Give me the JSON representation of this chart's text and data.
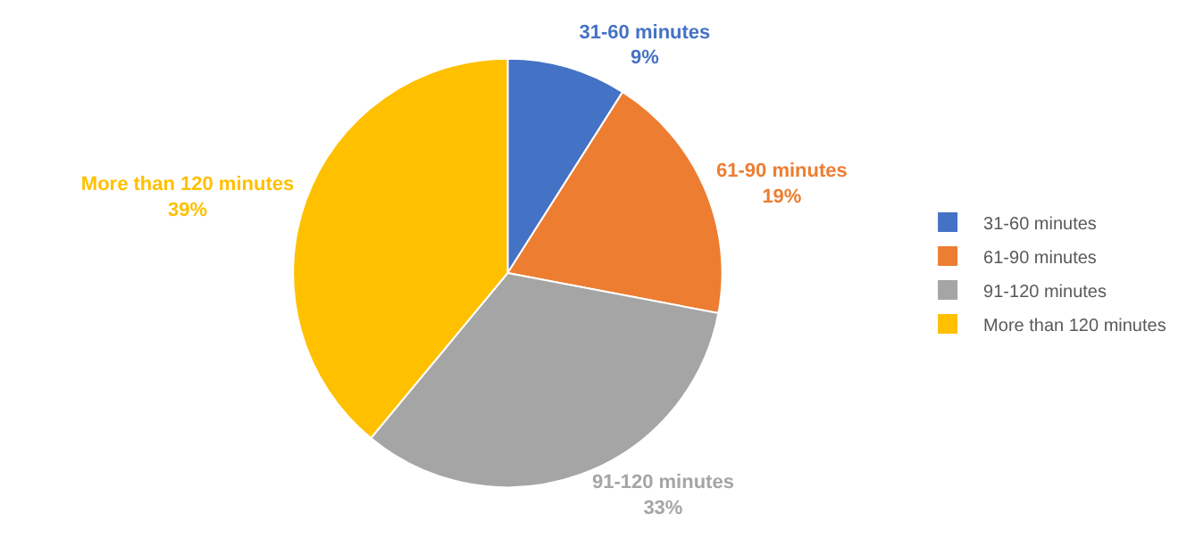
{
  "chart_data": {
    "type": "pie",
    "categories": [
      "31-60 minutes",
      "61-90 minutes",
      "91-120 minutes",
      "More than 120 minutes"
    ],
    "values": [
      9,
      19,
      33,
      39
    ],
    "value_labels": [
      "9%",
      "19%",
      "33%",
      "39%"
    ],
    "colors": [
      "#4472c4",
      "#ed7d31",
      "#a5a5a5",
      "#ffc000"
    ],
    "legend": "right"
  }
}
